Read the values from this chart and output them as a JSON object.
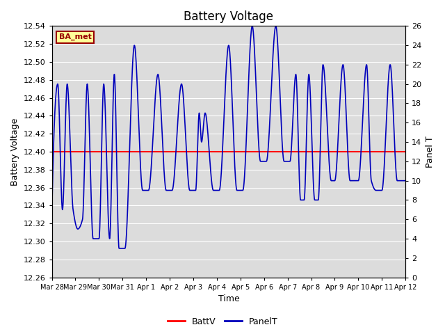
{
  "title": "Battery Voltage",
  "xlabel": "Time",
  "ylabel_left": "Battery Voltage",
  "ylabel_right": "Panel T",
  "ylim_left": [
    12.26,
    12.54
  ],
  "ylim_right": [
    0,
    26
  ],
  "yticks_left": [
    12.26,
    12.28,
    12.3,
    12.32,
    12.34,
    12.36,
    12.38,
    12.4,
    12.42,
    12.44,
    12.46,
    12.48,
    12.5,
    12.52,
    12.54
  ],
  "yticks_right": [
    0,
    2,
    4,
    6,
    8,
    10,
    12,
    14,
    16,
    18,
    20,
    22,
    24,
    26
  ],
  "xtick_labels": [
    "Mar 28",
    "Mar 29",
    "Mar 30",
    "Mar 31",
    "Apr 1",
    "Apr 2",
    "Apr 3",
    "Apr 4",
    "Apr 5",
    "Apr 6",
    "Apr 7",
    "Apr 8",
    "Apr 9",
    "Apr 10",
    "Apr 11",
    "Apr 12"
  ],
  "battv_value": 12.4,
  "battv_color": "#ff0000",
  "panelt_color": "#0000bb",
  "background_color": "#dcdcdc",
  "label_box_text": "BA_met",
  "label_box_bg": "#ffff99",
  "label_box_edge": "#990000",
  "legend_labels": [
    "BattV",
    "PanelT"
  ],
  "title_fontsize": 12,
  "axis_label_fontsize": 9,
  "tick_fontsize": 8,
  "grid_color": "#ffffff",
  "fig_bg": "#ffffff",
  "panelt_key_points": [
    [
      0.0,
      6.5
    ],
    [
      0.25,
      20
    ],
    [
      0.45,
      7
    ],
    [
      0.65,
      20
    ],
    [
      0.9,
      7
    ],
    [
      1.1,
      5
    ],
    [
      1.3,
      6
    ],
    [
      1.5,
      20
    ],
    [
      1.75,
      4
    ],
    [
      2.0,
      4
    ],
    [
      2.2,
      20
    ],
    [
      2.45,
      4
    ],
    [
      2.65,
      21
    ],
    [
      2.85,
      3
    ],
    [
      3.1,
      3
    ],
    [
      3.5,
      24
    ],
    [
      3.85,
      9
    ],
    [
      4.1,
      9
    ],
    [
      4.5,
      21
    ],
    [
      4.85,
      9
    ],
    [
      5.1,
      9
    ],
    [
      5.5,
      20
    ],
    [
      5.85,
      9
    ],
    [
      6.1,
      9
    ],
    [
      6.25,
      17
    ],
    [
      6.35,
      14
    ],
    [
      6.5,
      17
    ],
    [
      6.85,
      9
    ],
    [
      7.1,
      9
    ],
    [
      7.5,
      24
    ],
    [
      7.85,
      9
    ],
    [
      8.1,
      9
    ],
    [
      8.5,
      26
    ],
    [
      8.85,
      12
    ],
    [
      9.1,
      12
    ],
    [
      9.5,
      26
    ],
    [
      9.85,
      12
    ],
    [
      10.1,
      12
    ],
    [
      10.35,
      21
    ],
    [
      10.55,
      8
    ],
    [
      10.7,
      8
    ],
    [
      10.9,
      21
    ],
    [
      11.15,
      8
    ],
    [
      11.3,
      8
    ],
    [
      11.5,
      22
    ],
    [
      11.85,
      10
    ],
    [
      12.0,
      10
    ],
    [
      12.35,
      22
    ],
    [
      12.65,
      10
    ],
    [
      13.0,
      10
    ],
    [
      13.35,
      22
    ],
    [
      13.55,
      10
    ],
    [
      13.75,
      9
    ],
    [
      14.0,
      9
    ],
    [
      14.35,
      22
    ],
    [
      14.65,
      10
    ],
    [
      15.0,
      10
    ]
  ]
}
